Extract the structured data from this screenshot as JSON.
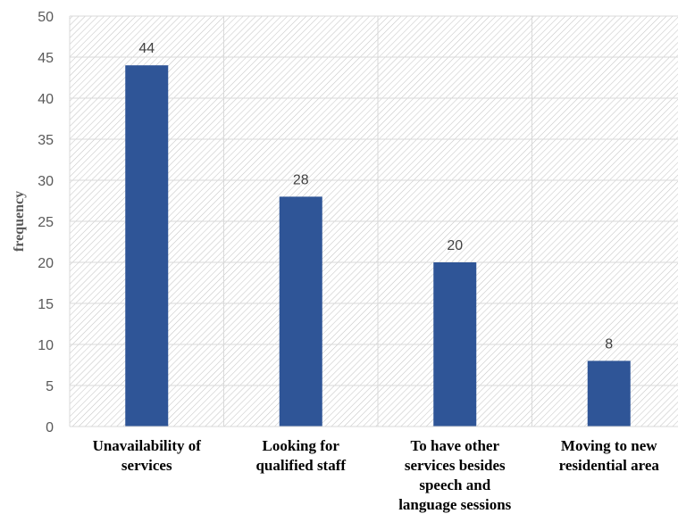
{
  "chart_data": {
    "type": "bar",
    "title": "",
    "xlabel": "",
    "ylabel": "frequency",
    "categories": [
      [
        "Unavailability of",
        "services"
      ],
      [
        "Looking for",
        "qualified staff"
      ],
      [
        "To have other",
        "services besides",
        "speech and",
        "language sessions"
      ],
      [
        "Moving to new",
        "residential area"
      ]
    ],
    "values": [
      44,
      28,
      20,
      8
    ],
    "data_labels": [
      "44",
      "28",
      "20",
      "8"
    ],
    "ylim": [
      0,
      50
    ],
    "yticks": [
      0,
      5,
      10,
      15,
      20,
      25,
      30,
      35,
      40,
      45,
      50
    ],
    "grid": true,
    "plot_background": "hatched",
    "legend": "none",
    "colors": {
      "bar": "#2F5597",
      "grid": "#D9D9D9",
      "hatch": "#BFBFBF"
    }
  }
}
